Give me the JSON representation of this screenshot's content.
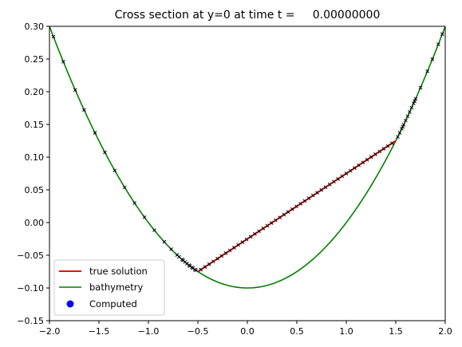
{
  "chart_data": {
    "type": "line",
    "title": "Cross section at y=0 at time t =     0.00000000",
    "xlabel": "",
    "ylabel": "",
    "xlim": [
      -2.0,
      2.0
    ],
    "ylim": [
      -0.15,
      0.3
    ],
    "grid": false,
    "legend_placement": "lower-left",
    "x_ticks": [
      -2.0,
      -1.5,
      -1.0,
      -0.5,
      0.0,
      0.5,
      1.0,
      1.5,
      2.0
    ],
    "x_tick_labels": [
      "−2.0",
      "−1.5",
      "−1.0",
      "−0.5",
      "0.0",
      "0.5",
      "1.0",
      "1.5",
      "2.0"
    ],
    "y_ticks": [
      -0.15,
      -0.1,
      -0.05,
      0.0,
      0.05,
      0.1,
      0.15,
      0.2,
      0.25,
      0.3
    ],
    "y_tick_labels": [
      "−0.15",
      "−0.10",
      "−0.05",
      "0.00",
      "0.05",
      "0.10",
      "0.15",
      "0.20",
      "0.25",
      "0.30"
    ],
    "series": [
      {
        "name": "true solution",
        "color": "#ff0000",
        "style": "line",
        "x": [
          -0.5,
          1.5
        ],
        "y": [
          -0.075,
          0.125
        ]
      },
      {
        "name": "bathymetry",
        "color": "#008000",
        "style": "line",
        "function": "0.1*(x^2 - 1)",
        "x_range": [
          -2.0,
          2.0
        ]
      },
      {
        "name": "Computed",
        "color": "#0000ff",
        "style": "points"
      }
    ],
    "computed_markers": {
      "color": "#000000",
      "x_bathymetry": [
        -1.96,
        -1.86,
        -1.74,
        -1.65,
        -1.54,
        -1.44,
        -1.34,
        -1.24,
        -1.14,
        -1.04,
        -0.94,
        -0.84,
        -0.77,
        -0.71,
        -0.69,
        -0.66,
        -0.65,
        -0.63,
        -0.61,
        -0.59,
        -0.58,
        -0.56,
        -0.55,
        -0.53,
        -0.52,
        1.52,
        1.54,
        1.56,
        1.57,
        1.58,
        1.6,
        1.62,
        1.64,
        1.66,
        1.68,
        1.69,
        1.7,
        1.75,
        1.82,
        1.87,
        1.93,
        1.97
      ]
    }
  }
}
